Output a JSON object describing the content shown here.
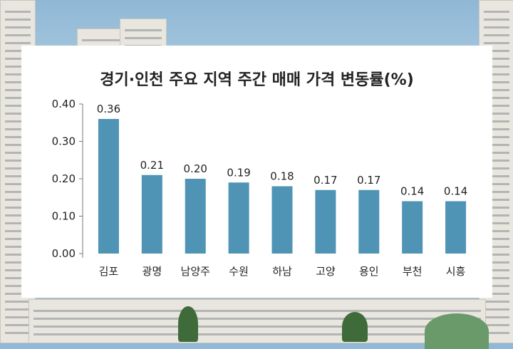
{
  "colors": {
    "bar": "#4f94b5",
    "axis": "#777777"
  },
  "chart_data": {
    "type": "bar",
    "title": "경기·인천 주요 지역 주간 매매 가격 변동률(%)",
    "categories": [
      "김포",
      "광명",
      "남양주",
      "수원",
      "하남",
      "고양",
      "용인",
      "부천",
      "시흥"
    ],
    "values": [
      0.36,
      0.21,
      0.2,
      0.19,
      0.18,
      0.17,
      0.17,
      0.14,
      0.14
    ],
    "value_labels": [
      "0.36",
      "0.21",
      "0.20",
      "0.19",
      "0.18",
      "0.17",
      "0.17",
      "0.14",
      "0.14"
    ],
    "yticks": [
      "0.00",
      "0.10",
      "0.20",
      "0.30",
      "0.40"
    ],
    "ylim": [
      0,
      0.4
    ],
    "grid": false,
    "legend": "none"
  }
}
